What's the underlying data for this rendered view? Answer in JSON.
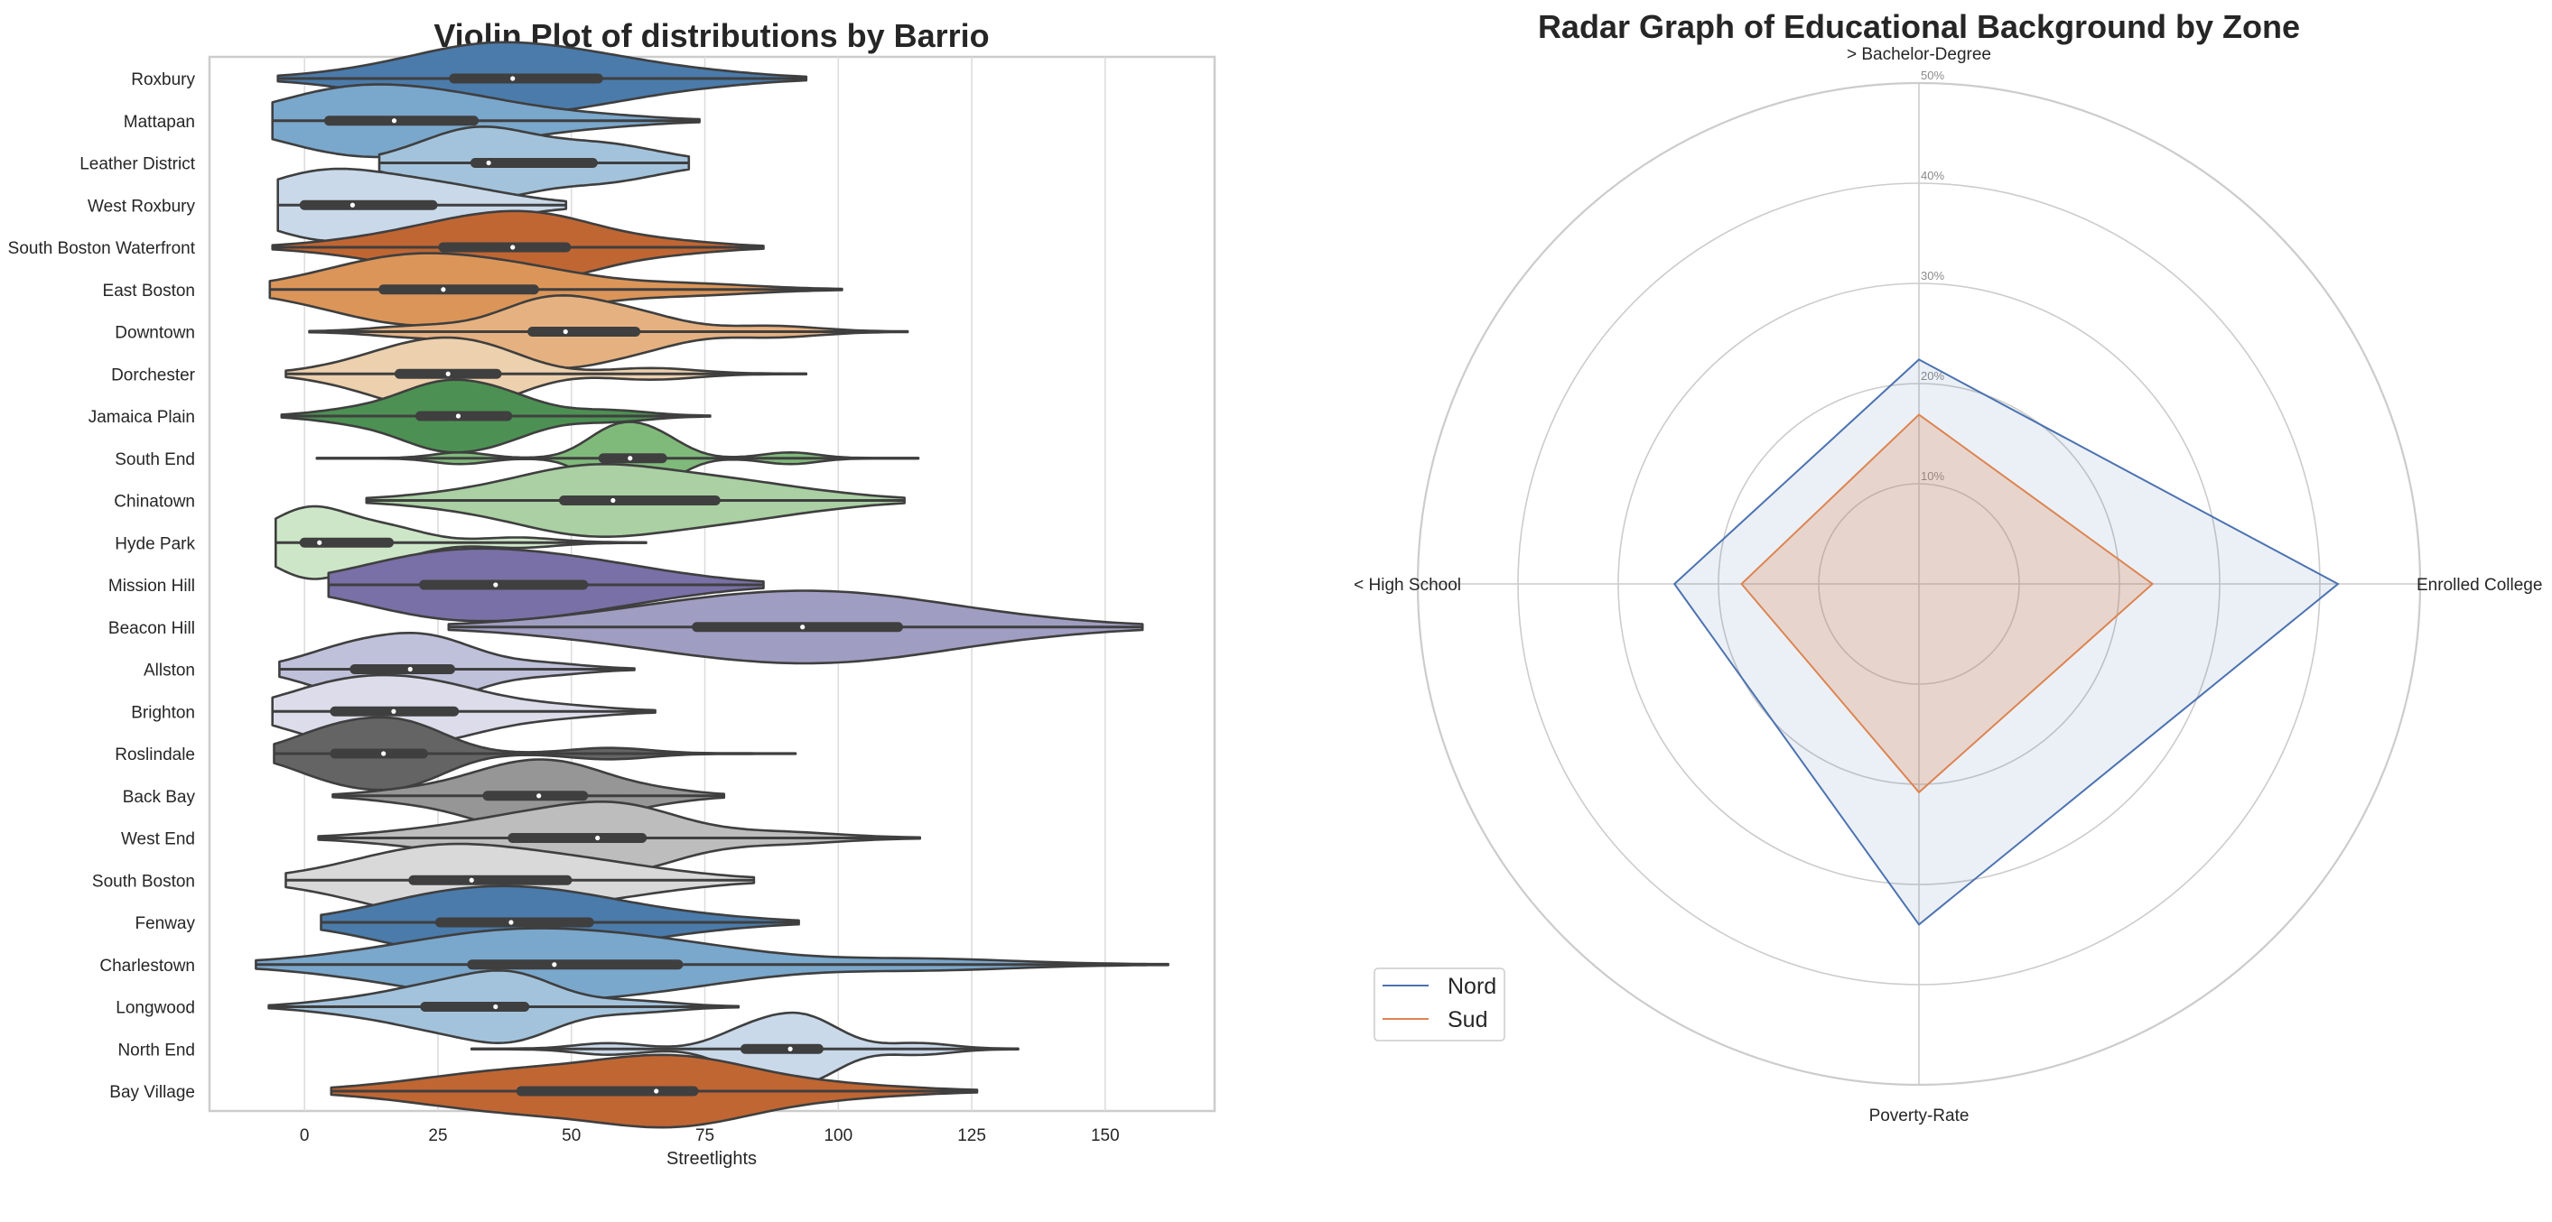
{
  "chart_data": [
    {
      "type": "violin",
      "title": "Violin Plot of distributions by Barrio",
      "xlabel": "Streetlights",
      "ylabel": "",
      "xlim": [
        -17.8,
        170.5
      ],
      "xticks": [
        0,
        25,
        50,
        75,
        100,
        125,
        150
      ],
      "grid": "vertical",
      "orientation": "horizontal",
      "categories": [
        {
          "name": "Roxbury",
          "color": "#4a7bab",
          "min": -5,
          "q1": 28,
          "median": 39,
          "q3": 55,
          "max": 94
        },
        {
          "name": "Mattapan",
          "color": "#7aa7cc",
          "min": -6,
          "q1": 4.6,
          "median": 16.8,
          "q3": 31.7,
          "max": 74
        },
        {
          "name": "Leather District",
          "color": "#a3c3dc",
          "min": 14,
          "q1": 32,
          "median": 34.5,
          "q3": 54,
          "max": 72
        },
        {
          "name": "West Roxbury",
          "color": "#c9d9ea",
          "min": -5,
          "q1": 0,
          "median": 9,
          "q3": 24,
          "max": 49
        },
        {
          "name": "South Boston Waterfront",
          "color": "#c06633",
          "min": -6,
          "q1": 26,
          "median": 39,
          "q3": 49,
          "max": 86
        },
        {
          "name": "East Boston",
          "color": "#db9559",
          "min": -6.5,
          "q1": 14.8,
          "median": 26,
          "q3": 43,
          "max": 100.7
        },
        {
          "name": "Downtown",
          "color": "#e6b180",
          "min": 0.9,
          "q1": 42.7,
          "median": 48.9,
          "q3": 62,
          "max": 113
        },
        {
          "name": "Dorchester",
          "color": "#edd0ad",
          "min": -3.5,
          "q1": 17.8,
          "median": 26.9,
          "q3": 36,
          "max": 94
        },
        {
          "name": "Jamaica Plain",
          "color": "#4c9153",
          "min": -4.3,
          "q1": 21.7,
          "median": 28.8,
          "q3": 38,
          "max": 76
        },
        {
          "name": "South End",
          "color": "#80ba7b",
          "min": 2.3,
          "q1": 56,
          "median": 61,
          "q3": 67,
          "max": 115
        },
        {
          "name": "Chinatown",
          "color": "#aad0a3",
          "min": 11.6,
          "q1": 48.6,
          "median": 57.8,
          "q3": 77,
          "max": 112.4
        },
        {
          "name": "Hyde Park",
          "color": "#cde6c7",
          "min": -5.4,
          "q1": 0,
          "median": 2.8,
          "q3": 15.8,
          "max": 64
        },
        {
          "name": "Mission Hill",
          "color": "#7870a6",
          "min": 4.5,
          "q1": 22.4,
          "median": 35.8,
          "q3": 52.2,
          "max": 86
        },
        {
          "name": "Beacon Hill",
          "color": "#a09dc2",
          "min": 27,
          "q1": 73.5,
          "median": 93.3,
          "q3": 111.2,
          "max": 157
        },
        {
          "name": "Allston",
          "color": "#bfc0da",
          "min": -4.7,
          "q1": 9.4,
          "median": 19.8,
          "q3": 27.3,
          "max": 61.8
        },
        {
          "name": "Brighton",
          "color": "#dcdcea",
          "min": -6,
          "q1": 5.7,
          "median": 16.7,
          "q3": 28,
          "max": 65.7
        },
        {
          "name": "Roslindale",
          "color": "#646464",
          "min": -5.7,
          "q1": 5.7,
          "median": 14.8,
          "q3": 22.2,
          "max": 92
        },
        {
          "name": "Back Bay",
          "color": "#969696",
          "min": 5.3,
          "q1": 34.3,
          "median": 43.9,
          "q3": 52.2,
          "max": 78.6
        },
        {
          "name": "West End",
          "color": "#bdbdbd",
          "min": 2.6,
          "q1": 39,
          "median": 54.9,
          "q3": 63.2,
          "max": 115.3
        },
        {
          "name": "South Boston",
          "color": "#d9d9d9",
          "min": -3.5,
          "q1": 20.4,
          "median": 31.3,
          "q3": 49.2,
          "max": 84.2
        },
        {
          "name": "Fenway",
          "color": "#4a7bab",
          "min": 3.1,
          "q1": 25.4,
          "median": 38.7,
          "q3": 53.3,
          "max": 92.6
        },
        {
          "name": "Charlestown",
          "color": "#7aa7cc",
          "min": -9.1,
          "q1": 31.4,
          "median": 46.8,
          "q3": 70,
          "max": 161.8
        },
        {
          "name": "Longwood",
          "color": "#a3c3dc",
          "min": -6.7,
          "q1": 22.6,
          "median": 35.8,
          "q3": 41.2,
          "max": 81.3
        },
        {
          "name": "North End",
          "color": "#c9d9ea",
          "min": 31.3,
          "q1": 82.6,
          "median": 91,
          "q3": 96.3,
          "max": 133.7
        },
        {
          "name": "Bay Village",
          "color": "#c06633",
          "min": 5,
          "q1": 40.6,
          "median": 65.9,
          "q3": 72.9,
          "max": 126
        }
      ]
    },
    {
      "type": "radar",
      "title": "Radar Graph of Educational Background by Zone",
      "axes": [
        "> Bachelor-Degree",
        "Enrolled College",
        "Poverty-Rate",
        "< High School"
      ],
      "rlim": [
        0,
        50
      ],
      "rticks": [
        10,
        20,
        30,
        40,
        50
      ],
      "rtick_labels": [
        "10%",
        "20%",
        "30%",
        "40%",
        "50%"
      ],
      "legend": "bottom-left",
      "series": [
        {
          "name": "Nord",
          "color": "#4c72b0",
          "values": [
            22.4,
            41.8,
            34.0,
            24.4
          ]
        },
        {
          "name": "Sud",
          "color": "#dd8452",
          "values": [
            16.9,
            23.3,
            20.8,
            17.7
          ]
        }
      ]
    }
  ]
}
